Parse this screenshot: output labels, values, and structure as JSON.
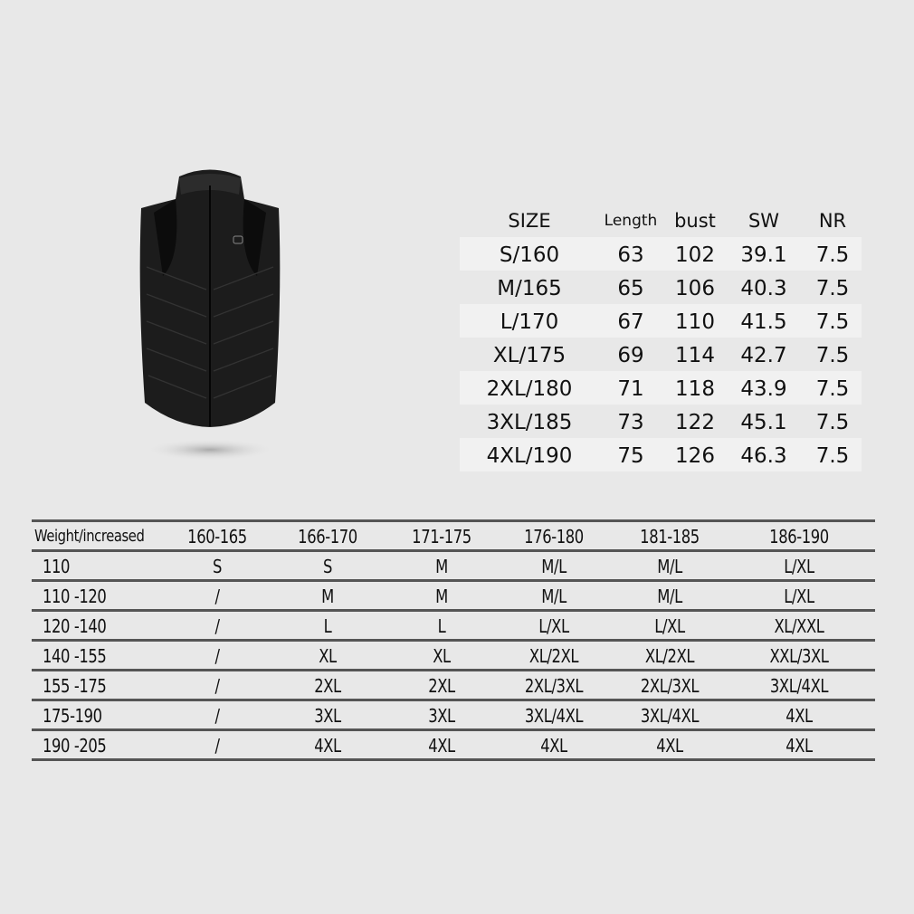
{
  "product_image": {
    "alt_name": "black-heated-vest"
  },
  "size_table": {
    "headers": [
      "SIZE",
      "Length",
      "bust",
      "SW",
      "NR"
    ],
    "rows": [
      [
        "S/160",
        "63",
        "102",
        "39.1",
        "7.5"
      ],
      [
        "M/165",
        "65",
        "106",
        "40.3",
        "7.5"
      ],
      [
        "L/170",
        "67",
        "110",
        "41.5",
        "7.5"
      ],
      [
        "XL/175",
        "69",
        "114",
        "42.7",
        "7.5"
      ],
      [
        "2XL/180",
        "71",
        "118",
        "43.9",
        "7.5"
      ],
      [
        "3XL/185",
        "73",
        "122",
        "45.1",
        "7.5"
      ],
      [
        "4XL/190",
        "75",
        "126",
        "46.3",
        "7.5"
      ]
    ]
  },
  "fit_table": {
    "headers": [
      "Weight/increased",
      "160-165",
      "166-170",
      "171-175",
      "176-180",
      "181-185",
      "186-190"
    ],
    "rows": [
      [
        "110",
        "S",
        "S",
        "M",
        "M/L",
        "M/L",
        "L/XL"
      ],
      [
        "110 -120",
        "/",
        "M",
        "M",
        "M/L",
        "M/L",
        "L/XL"
      ],
      [
        "120 -140",
        "/",
        "L",
        "L",
        "L/XL",
        "L/XL",
        "XL/XXL"
      ],
      [
        "140 -155",
        "/",
        "XL",
        "XL",
        "XL/2XL",
        "XL/2XL",
        "XXL/3XL"
      ],
      [
        "155 -175",
        "/",
        "2XL",
        "2XL",
        "2XL/3XL",
        "2XL/3XL",
        "3XL/4XL"
      ],
      [
        "175-190",
        "/",
        "3XL",
        "3XL",
        "3XL/4XL",
        "3XL/4XL",
        "4XL"
      ],
      [
        "190 -205",
        "/",
        "4XL",
        "4XL",
        "4XL",
        "4XL",
        "4XL"
      ]
    ]
  },
  "colors": {
    "background": "#e8e8e8",
    "vest": "#1a1a1a",
    "rule": "#555555"
  }
}
